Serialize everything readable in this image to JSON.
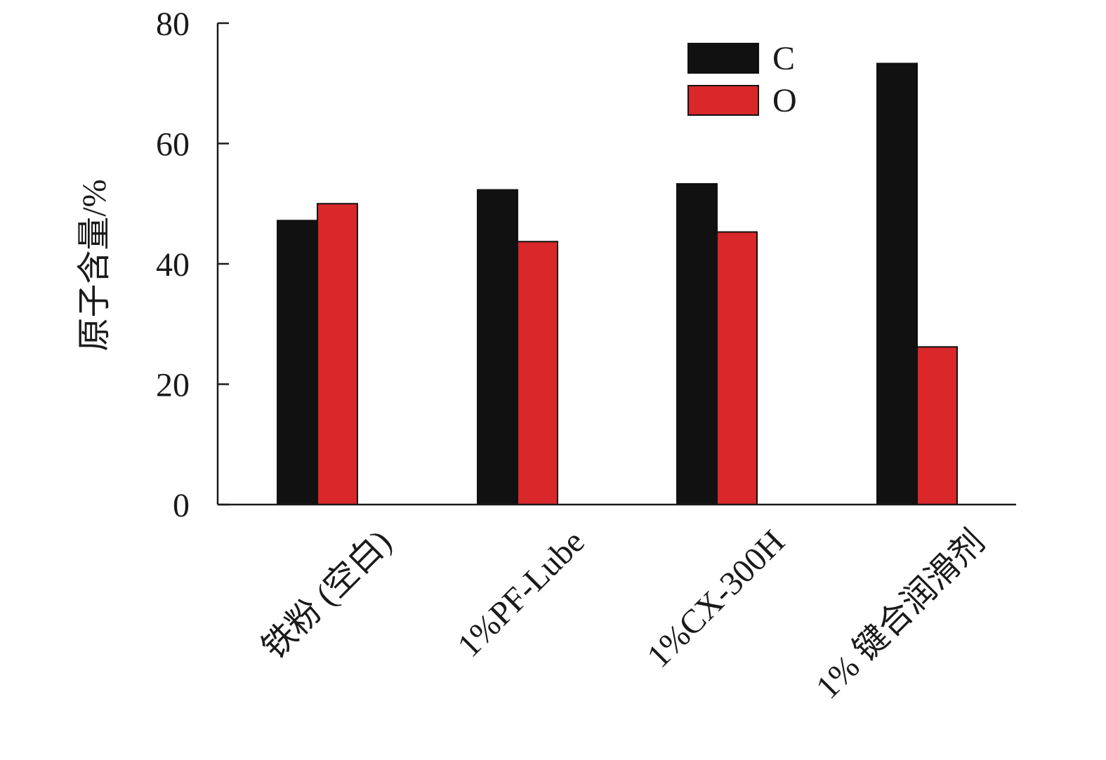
{
  "chart_data": {
    "type": "bar",
    "title": "",
    "xlabel": "",
    "ylabel": "原子含量/%",
    "categories": [
      "铁粉 (空白)",
      "1%PF-Lube",
      "1%CX-300H",
      "1% 键合润滑剂"
    ],
    "series": [
      {
        "name": "C",
        "color": "#111111",
        "values": [
          47.2,
          52.3,
          53.3,
          73.3
        ]
      },
      {
        "name": "O",
        "color": "#d9272a",
        "values": [
          50.0,
          43.7,
          45.3,
          26.2
        ]
      }
    ],
    "ylim": [
      0,
      80
    ],
    "yticks": [
      "0",
      "20",
      "40",
      "60",
      "80"
    ],
    "grid": false,
    "legend_position": "top-right"
  }
}
